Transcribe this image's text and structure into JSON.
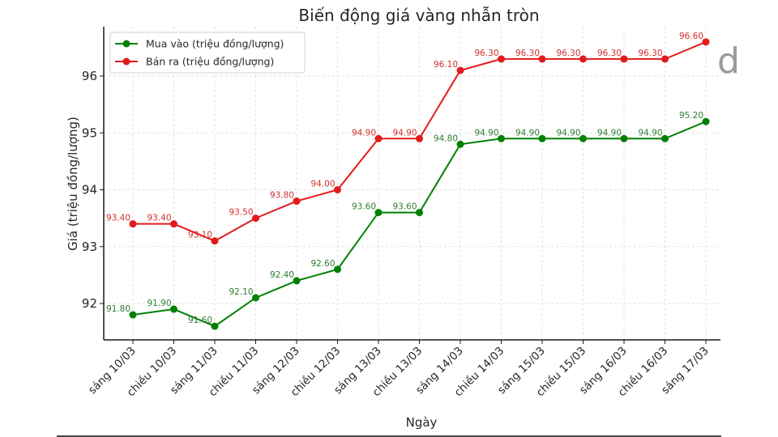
{
  "chart_data": {
    "type": "line",
    "title": "Biến động giá vàng nhẫn tròn",
    "xlabel": "Ngày",
    "ylabel": "Giá (triệu đồng/lượng)",
    "categories": [
      "sáng 10/03",
      "chiều 10/03",
      "sáng 11/03",
      "chiều 11/03",
      "sáng 12/03",
      "chiều 12/03",
      "sáng 13/03",
      "chiều 13/03",
      "sáng 14/03",
      "chiều 14/03",
      "sáng 15/03",
      "chiều 15/03",
      "sáng 16/03",
      "chiều 16/03",
      "sáng 17/03"
    ],
    "series": [
      {
        "name": "Mua vào (triệu đồng/lượng)",
        "color": "#008000",
        "values": [
          91.8,
          91.9,
          91.6,
          92.1,
          92.4,
          92.6,
          93.6,
          93.6,
          94.8,
          94.9,
          94.9,
          94.9,
          94.9,
          94.9,
          95.2
        ]
      },
      {
        "name": "Bán ra (triệu đồng/lượng)",
        "color": "#e31a1c",
        "values": [
          93.4,
          93.4,
          93.1,
          93.5,
          93.8,
          94.0,
          94.9,
          94.9,
          96.1,
          96.3,
          96.3,
          96.3,
          96.3,
          96.3,
          96.6
        ]
      }
    ],
    "yticks": [
      92,
      93,
      94,
      95,
      96
    ],
    "ylim": [
      91.36,
      96.87
    ],
    "grid": true,
    "legend_position": "upper left",
    "data_labels": true,
    "label_format": "2 decimals"
  },
  "watermark": "d"
}
